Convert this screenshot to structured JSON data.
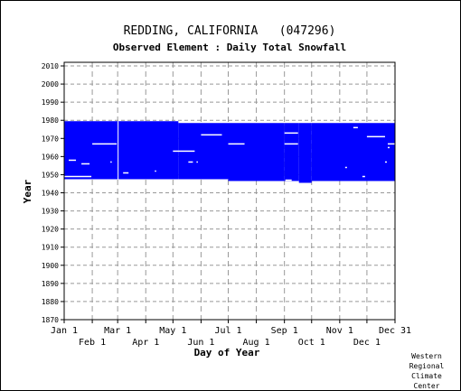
{
  "chart_data": {
    "type": "scatter",
    "title": "REDDING, CALIFORNIA   (047296)",
    "subtitle": "Observed Element : Daily Total Snowfall",
    "xlabel": "Day of Year",
    "ylabel": "Year",
    "xlim": [
      1,
      366
    ],
    "ylim": [
      1870,
      2012
    ],
    "x_tick_labels_top_row": [
      {
        "label": "Jan 1",
        "day": 1
      },
      {
        "label": "Mar 1",
        "day": 60
      },
      {
        "label": "May 1",
        "day": 121
      },
      {
        "label": "Jul 1",
        "day": 182
      },
      {
        "label": "Sep 1",
        "day": 244
      },
      {
        "label": "Nov 1",
        "day": 305
      },
      {
        "label": "Dec 31",
        "day": 366
      }
    ],
    "x_tick_labels_bottom_row": [
      {
        "label": "Feb 1",
        "day": 32
      },
      {
        "label": "Apr 1",
        "day": 91
      },
      {
        "label": "Jun 1",
        "day": 152
      },
      {
        "label": "Aug 1",
        "day": 213
      },
      {
        "label": "Oct 1",
        "day": 274
      },
      {
        "label": "Dec 1",
        "day": 335
      }
    ],
    "y_ticks": [
      1870,
      1880,
      1890,
      1900,
      1910,
      1920,
      1930,
      1940,
      1950,
      1960,
      1970,
      1980,
      1990,
      2000,
      2010
    ],
    "grid": true,
    "data_color": "#0000ff",
    "coverage_blocks": [
      {
        "day_start": 1,
        "day_end": 60,
        "year_start": 1948,
        "year_end": 1979
      },
      {
        "day_start": 60,
        "day_end": 127,
        "year_start": 1948,
        "year_end": 1979
      },
      {
        "day_start": 127,
        "day_end": 182,
        "year_start": 1948,
        "year_end": 1978
      },
      {
        "day_start": 182,
        "day_end": 244,
        "year_start": 1947,
        "year_end": 1978
      },
      {
        "day_start": 244,
        "day_end": 260,
        "year_start": 1947,
        "year_end": 1978
      },
      {
        "day_start": 260,
        "day_end": 274,
        "year_start": 1946,
        "year_end": 1978
      },
      {
        "day_start": 274,
        "day_end": 366,
        "year_start": 1947,
        "year_end": 1978
      }
    ],
    "missing_segments": [
      {
        "year": 1967,
        "day_start": 32,
        "day_end": 59
      },
      {
        "year": 1949,
        "day_start": 1,
        "day_end": 31
      },
      {
        "year": 1956,
        "day_start": 20,
        "day_end": 29
      },
      {
        "year": 1958,
        "day_start": 6,
        "day_end": 14
      },
      {
        "year": 1963,
        "day_start": 121,
        "day_end": 145
      },
      {
        "year": 1972,
        "day_start": 152,
        "day_end": 175
      },
      {
        "year": 1967,
        "day_start": 182,
        "day_end": 200
      },
      {
        "year": 1973,
        "day_start": 244,
        "day_end": 259
      },
      {
        "year": 1967,
        "day_start": 244,
        "day_end": 259
      },
      {
        "year": 1976,
        "day_start": 320,
        "day_end": 325
      },
      {
        "year": 1971,
        "day_start": 335,
        "day_end": 355
      },
      {
        "year": 1967,
        "day_start": 358,
        "day_end": 366
      },
      {
        "year": 1947,
        "day_start": 245,
        "day_end": 252
      },
      {
        "year": 1957,
        "day_start": 138,
        "day_end": 143
      },
      {
        "year": 1954,
        "day_start": 311,
        "day_end": 313
      },
      {
        "year": 1951,
        "day_start": 66,
        "day_end": 72
      },
      {
        "year": 1952,
        "day_start": 101,
        "day_end": 102
      },
      {
        "year": 1957,
        "day_start": 147,
        "day_end": 148
      },
      {
        "year": 1957,
        "day_start": 52,
        "day_end": 53
      },
      {
        "year": 1949,
        "day_start": 330,
        "day_end": 333
      },
      {
        "year": 1957,
        "day_start": 355,
        "day_end": 357
      },
      {
        "year": 1965,
        "day_start": 358,
        "day_end": 360
      }
    ]
  },
  "credit": [
    "Western",
    "Regional",
    "Climate",
    "Center"
  ]
}
